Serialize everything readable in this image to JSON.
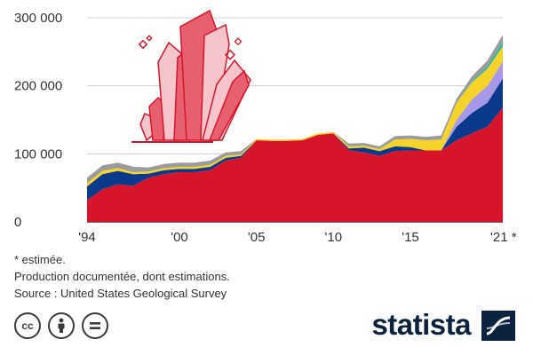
{
  "chart_data": {
    "type": "area",
    "stacked": true,
    "title": "",
    "xlabel": "",
    "ylabel": "",
    "x": [
      1994,
      1995,
      1996,
      1997,
      1998,
      1999,
      2000,
      2001,
      2002,
      2003,
      2004,
      2005,
      2006,
      2007,
      2008,
      2009,
      2010,
      2011,
      2012,
      2013,
      2014,
      2015,
      2016,
      2017,
      2018,
      2019,
      2020,
      2021
    ],
    "xlim": [
      1994,
      2021
    ],
    "ylim": [
      0,
      300000
    ],
    "y_ticks": [
      0,
      100000,
      200000,
      300000
    ],
    "y_tick_labels": [
      "0",
      "100 000",
      "200 000",
      "300 000"
    ],
    "x_tick_values": [
      1994,
      2000,
      2005,
      2010,
      2015,
      2021
    ],
    "x_tick_labels": [
      "'94",
      "'00",
      "'05",
      "'10",
      "'15",
      "'21 *"
    ],
    "grid": true,
    "legend": "none",
    "series": [
      {
        "color": "#d7152a",
        "values": [
          32000,
          48000,
          55000,
          53000,
          65000,
          70000,
          73000,
          73000,
          76000,
          90000,
          94000,
          120000,
          119000,
          119000,
          120000,
          128000,
          130000,
          105000,
          102000,
          97000,
          104000,
          105000,
          105000,
          105000,
          120000,
          130000,
          140000,
          168000
        ]
      },
      {
        "color": "#0b3a8c",
        "values": [
          20000,
          22000,
          20000,
          17000,
          6000,
          6000,
          5000,
          5000,
          5000,
          4000,
          3000,
          0,
          0,
          0,
          0,
          0,
          0,
          3000,
          7000,
          7000,
          7000,
          5000,
          0,
          0,
          20000,
          30000,
          35000,
          43000
        ]
      },
      {
        "color": "#a898e8",
        "values": [
          0,
          0,
          0,
          0,
          0,
          0,
          0,
          0,
          0,
          0,
          0,
          0,
          0,
          0,
          0,
          0,
          0,
          0,
          0,
          0,
          0,
          0,
          0,
          0,
          10000,
          20000,
          25000,
          25000
        ]
      },
      {
        "color": "#f5d328",
        "values": [
          5000,
          5000,
          4000,
          3000,
          3000,
          3000,
          3000,
          3000,
          3000,
          3000,
          2000,
          2000,
          2000,
          2000,
          2000,
          2000,
          2000,
          3000,
          3000,
          3000,
          10000,
          12000,
          15000,
          16000,
          25000,
          25000,
          25000,
          22000
        ]
      },
      {
        "color": "#2fb8a4",
        "values": [
          0,
          0,
          0,
          0,
          0,
          0,
          0,
          0,
          0,
          0,
          0,
          0,
          0,
          0,
          0,
          0,
          0,
          0,
          0,
          0,
          0,
          0,
          0,
          0,
          0,
          2000,
          4000,
          7000
        ]
      },
      {
        "color": "#9b9b9b",
        "values": [
          8000,
          8000,
          8000,
          8000,
          6000,
          6000,
          6000,
          6000,
          6000,
          5000,
          5000,
          0,
          0,
          0,
          0,
          0,
          0,
          4000,
          4000,
          4000,
          5000,
          5000,
          5000,
          6000,
          6000,
          7000,
          8000,
          10000
        ]
      }
    ]
  },
  "notes": {
    "line1": "* estimée.",
    "line2": "Production documentée, dont estimations.",
    "line3": "Source : United States Geological Survey"
  },
  "footer": {
    "cc_label": "cc",
    "brand": "statista"
  },
  "illustration": {
    "icon": "crystal-cluster-icon",
    "fill_light": "#f6c4cb",
    "fill_mid": "#e7606f",
    "stroke": "#d7152a"
  }
}
